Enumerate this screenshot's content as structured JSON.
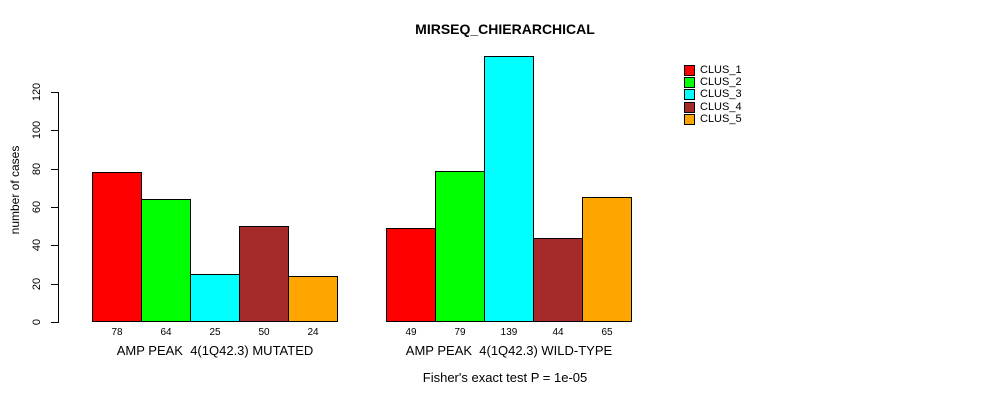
{
  "chart_data": {
    "type": "bar",
    "title": "MIRSEQ_CHIERARCHICAL",
    "ylabel": "number of cases",
    "xlabel": "",
    "yticks": [
      0,
      20,
      40,
      60,
      80,
      100,
      120
    ],
    "ylim": [
      0,
      140
    ],
    "grid": false,
    "legend_position": "right",
    "categories": [
      "AMP PEAK  4(1Q42.3) MUTATED",
      "AMP PEAK  4(1Q42.3) WILD-TYPE"
    ],
    "series": [
      {
        "name": "CLUS_1",
        "color": "#ff0000",
        "values": [
          78,
          49
        ]
      },
      {
        "name": "CLUS_2",
        "color": "#00ff00",
        "values": [
          64,
          79
        ]
      },
      {
        "name": "CLUS_3",
        "color": "#00ffff",
        "values": [
          25,
          139
        ]
      },
      {
        "name": "CLUS_4",
        "color": "#a52a2a",
        "values": [
          50,
          44
        ]
      },
      {
        "name": "CLUS_5",
        "color": "#ffa500",
        "values": [
          24,
          65
        ]
      }
    ],
    "bar_value_labels_shown": true,
    "footnote": "Fisher's exact test P = 1e-05"
  }
}
